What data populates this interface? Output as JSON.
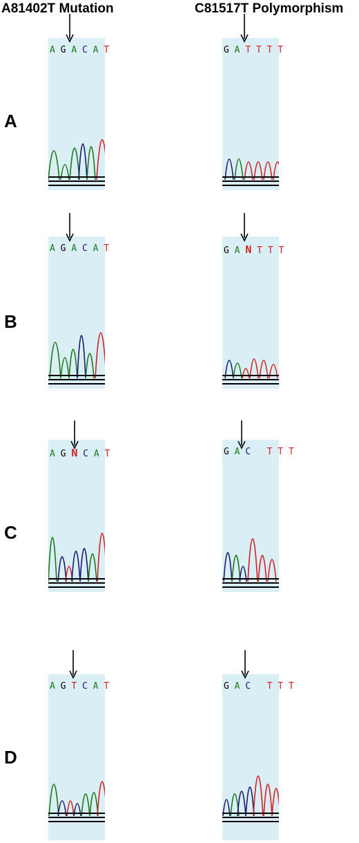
{
  "columns": [
    {
      "title": "A81402T Mutation"
    },
    {
      "title": "C81517T Polymorphism"
    }
  ],
  "colors": {
    "A": "#1a7a1a",
    "C": "#1a1a6e",
    "G": "#000000",
    "T": "#d42020",
    "N": "#d42020",
    "background": "#d9eef5"
  },
  "rows": [
    {
      "label": "A",
      "left": {
        "bases": [
          "A",
          "G",
          "A",
          "C",
          "A",
          "T"
        ],
        "display": [
          "A",
          "G",
          "A",
          "C",
          "A",
          "T"
        ]
      },
      "right": {
        "bases": [
          "G",
          "A",
          "T",
          "T",
          "T",
          "T"
        ],
        "display": [
          "G",
          "A",
          "T",
          "T",
          "T",
          "T"
        ]
      }
    },
    {
      "label": "B",
      "left": {
        "bases": [
          "A",
          "G",
          "A",
          "C",
          "A",
          "T"
        ],
        "display": [
          "A",
          "G",
          "A",
          "C",
          "A",
          "T"
        ]
      },
      "right": {
        "bases": [
          "G",
          "A",
          "N",
          "T",
          "T",
          "T"
        ],
        "display": [
          "G",
          "A",
          "N",
          "T",
          "T",
          "T"
        ]
      }
    },
    {
      "label": "C",
      "left": {
        "bases": [
          "A",
          "G",
          "N",
          "C",
          "A",
          "T"
        ],
        "display": [
          "A",
          "G",
          "N",
          "C",
          "A",
          "T"
        ]
      },
      "right": {
        "bases": [
          "G",
          "A",
          "C",
          "T",
          "T",
          "T"
        ],
        "display": [
          "G",
          "A",
          "C",
          " ",
          "T",
          "T",
          "T"
        ]
      }
    },
    {
      "label": "D",
      "left": {
        "bases": [
          "A",
          "G",
          "T",
          "C",
          "A",
          "T"
        ],
        "display": [
          "A",
          "G",
          "T",
          "C",
          "A",
          "T"
        ]
      },
      "right": {
        "bases": [
          "G",
          "A",
          "C",
          "T",
          "T",
          "T"
        ],
        "display": [
          "G",
          "A",
          "C",
          " ",
          "T",
          "T",
          "T"
        ]
      }
    }
  ]
}
